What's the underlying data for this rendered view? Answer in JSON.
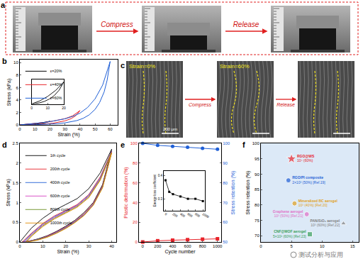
{
  "panel_a": {
    "title": "a",
    "steps": [
      "Compress",
      "Release"
    ]
  },
  "panel_c": {
    "title": "c",
    "image_labels": [
      "Strain=0%",
      "Strain=60%"
    ],
    "steps": [
      "Compress",
      "Release"
    ],
    "scale_bar": "200 μm"
  },
  "watermark": "测试分析与应用",
  "chart_data": [
    {
      "type": "line",
      "title": "b",
      "x_label": "Strain (%)",
      "y_label": "Stress (kPa)",
      "xlim": [
        0,
        65
      ],
      "xticks": [
        0,
        10,
        20,
        30,
        40,
        50,
        60
      ],
      "ylim": [
        0,
        10.5
      ],
      "yticks": [
        0,
        2,
        4,
        6,
        8,
        10
      ],
      "legend": "top left",
      "series": [
        {
          "name": "ε=20%",
          "color": "#000000",
          "x": [
            0,
            5,
            10,
            15,
            20,
            17,
            14,
            11,
            8,
            5,
            2,
            0.5
          ],
          "values": [
            0,
            0.08,
            0.2,
            0.36,
            0.58,
            0.36,
            0.22,
            0.13,
            0.07,
            0.03,
            0.01,
            0
          ]
        },
        {
          "name": "ε=40%",
          "color": "#e8232a",
          "x": [
            0,
            5,
            10,
            15,
            20,
            25,
            30,
            35,
            40,
            37,
            34,
            30,
            26,
            22,
            18,
            14,
            10,
            6,
            2,
            0.5
          ],
          "values": [
            0,
            0.1,
            0.22,
            0.36,
            0.52,
            0.72,
            1.0,
            1.45,
            2.3,
            1.45,
            1.0,
            0.65,
            0.42,
            0.27,
            0.17,
            0.1,
            0.05,
            0.02,
            0.01,
            0
          ]
        },
        {
          "name": "ε=60%",
          "color": "#1f5fd6",
          "x": [
            0,
            5,
            10,
            15,
            20,
            25,
            30,
            35,
            40,
            45,
            50,
            55,
            60,
            58,
            56,
            53,
            50,
            46,
            42,
            38,
            34,
            30,
            25,
            20,
            15,
            10,
            5,
            1
          ],
          "values": [
            0,
            0.1,
            0.22,
            0.36,
            0.52,
            0.72,
            0.98,
            1.35,
            1.9,
            2.8,
            4.2,
            6.4,
            10.2,
            7.2,
            5.3,
            3.6,
            2.5,
            1.6,
            1.05,
            0.7,
            0.48,
            0.33,
            0.2,
            0.12,
            0.06,
            0.03,
            0.01,
            0
          ]
        }
      ],
      "inset": {
        "xlim": [
          0,
          20
        ],
        "xticks": [
          0,
          10,
          20
        ],
        "ylim": [
          0,
          0.65
        ],
        "yticks": [],
        "tick_labels": "x"
      }
    },
    {
      "type": "line",
      "title": "d",
      "x_label": "Strain (%)",
      "y_label": "Stress (kPa)",
      "xlim": [
        0,
        42
      ],
      "xticks": [
        0,
        10,
        20,
        30,
        40
      ],
      "ylim": [
        0,
        2.5
      ],
      "yticks": [
        0,
        0.5,
        1.0,
        1.5,
        2.0,
        2.5
      ],
      "legend": "top left",
      "series": [
        {
          "name": "1th cycle",
          "color": "#000000",
          "x": [
            0,
            5,
            10,
            15,
            20,
            25,
            30,
            35,
            40,
            36,
            32,
            28,
            24,
            20,
            16,
            12,
            8,
            4,
            1
          ],
          "values": [
            0,
            0.35,
            0.6,
            0.8,
            0.95,
            1.1,
            1.35,
            1.75,
            2.35,
            1.45,
            1.0,
            0.75,
            0.55,
            0.4,
            0.27,
            0.16,
            0.08,
            0.02,
            0
          ]
        },
        {
          "name": "200th cycle",
          "color": "#e8232a",
          "x": [
            1,
            5,
            10,
            15,
            20,
            25,
            30,
            35,
            40,
            36,
            32,
            28,
            24,
            20,
            16,
            12,
            8,
            4,
            1.5
          ],
          "values": [
            0,
            0.22,
            0.47,
            0.66,
            0.8,
            0.95,
            1.2,
            1.65,
            2.3,
            1.42,
            0.98,
            0.72,
            0.53,
            0.38,
            0.26,
            0.15,
            0.07,
            0.02,
            0
          ]
        },
        {
          "name": "400th cycle",
          "color": "#1f5fd6",
          "x": [
            1.5,
            5,
            10,
            15,
            20,
            25,
            30,
            35,
            40,
            36,
            32,
            28,
            24,
            20,
            16,
            12,
            8,
            4,
            2
          ],
          "values": [
            0,
            0.2,
            0.45,
            0.64,
            0.78,
            0.93,
            1.18,
            1.62,
            2.29,
            1.4,
            0.96,
            0.7,
            0.52,
            0.37,
            0.25,
            0.14,
            0.07,
            0.02,
            0
          ]
        },
        {
          "name": "600th cycle",
          "color": "#d63fc2",
          "x": [
            2,
            5,
            10,
            15,
            20,
            25,
            30,
            35,
            40,
            36,
            32,
            28,
            24,
            20,
            16,
            12,
            8,
            4,
            2.5
          ],
          "values": [
            0,
            0.18,
            0.43,
            0.62,
            0.77,
            0.92,
            1.16,
            1.6,
            2.28,
            1.39,
            0.95,
            0.69,
            0.51,
            0.36,
            0.24,
            0.14,
            0.06,
            0.02,
            0
          ]
        },
        {
          "name": "800th cycle",
          "color": "#6b8e23",
          "x": [
            2.5,
            5,
            10,
            15,
            20,
            25,
            30,
            35,
            40,
            36,
            32,
            28,
            24,
            20,
            16,
            12,
            8,
            4,
            3
          ],
          "values": [
            0,
            0.16,
            0.41,
            0.6,
            0.75,
            0.9,
            1.14,
            1.58,
            2.27,
            1.38,
            0.94,
            0.68,
            0.5,
            0.35,
            0.23,
            0.13,
            0.06,
            0.01,
            0
          ]
        },
        {
          "name": "1000th cycle",
          "color": "#e08a00",
          "x": [
            3,
            5,
            10,
            15,
            20,
            25,
            30,
            35,
            40,
            36,
            32,
            28,
            24,
            20,
            16,
            12,
            8,
            4.5,
            3.5
          ],
          "values": [
            0,
            0.14,
            0.39,
            0.58,
            0.73,
            0.88,
            1.12,
            1.56,
            2.26,
            1.37,
            0.93,
            0.67,
            0.49,
            0.34,
            0.22,
            0.12,
            0.05,
            0.01,
            0
          ]
        }
      ]
    },
    {
      "type": "line",
      "title": "e",
      "x_label": "Cycle number",
      "y_label": "Plastic deformation (%)",
      "y2_label": "Stress retention (%)",
      "xlim": [
        -50,
        1050
      ],
      "xticks": [
        0,
        200,
        400,
        600,
        800,
        1000
      ],
      "ylim": [
        0,
        100
      ],
      "yticks": [
        0,
        20,
        40,
        60,
        80,
        100
      ],
      "y2lim": [
        50,
        100
      ],
      "y2ticks": [
        50,
        60,
        70,
        80,
        90,
        100
      ],
      "x": [
        0,
        200,
        400,
        600,
        800,
        1000
      ],
      "series": [
        {
          "color": "#e8232a",
          "marker": "square",
          "values": [
            0,
            1.2,
            1.8,
            2.3,
            2.8,
            3.2
          ]
        },
        {
          "color": "#1f5fd6",
          "marker": "circle",
          "axis": "y2",
          "values": [
            100,
            99,
            98.5,
            98,
            97.5,
            97
          ]
        }
      ],
      "inset": {
        "y_label": "Energy loss coefficient",
        "color": "#000000",
        "marker": "square",
        "x": [
          0,
          100,
          200,
          400,
          600,
          800,
          1000
        ],
        "values": [
          0.38,
          0.33,
          0.32,
          0.31,
          0.3,
          0.3,
          0.29
        ],
        "xlim": [
          -50,
          1050
        ],
        "xticks": [
          0,
          200,
          400,
          600,
          800,
          1000
        ],
        "ylim": [
          0.25,
          0.42
        ],
        "yticks": [
          0.3,
          0.4
        ]
      }
    },
    {
      "type": "scatter",
      "title": "f",
      "y_label": "Stress retention (%)",
      "xlim": [
        0,
        16
      ],
      "xticks": [
        0,
        5,
        10,
        15
      ],
      "ylim": [
        68,
        100
      ],
      "yticks": [
        70,
        75,
        80,
        85,
        90,
        95,
        100
      ],
      "points": [
        {
          "name": "RGO@WS",
          "detail": "10⁴ (60%)",
          "x": 5,
          "y": 95,
          "color": "#e8232a",
          "marker": "star"
        },
        {
          "name": "RGO/PI composite",
          "detail": "2×10³ (50%) [Ref.19]",
          "x": 4.5,
          "y": 88,
          "color": "#1f5fd6",
          "marker": "circle"
        },
        {
          "name": "Mineralized BC aerogel",
          "detail": "10³ (40%) [Ref.20]",
          "x": 5.5,
          "y": 80.5,
          "color": "#e0a020",
          "marker": "circle"
        },
        {
          "name": "Graphene aerogel",
          "detail": "10³ (50%) [Ref.21]",
          "x": 7.5,
          "y": 77,
          "color": "#e070c8",
          "marker": "circle"
        },
        {
          "name": "PAN/SiO₂ aerogel",
          "detail": "10³ (60%) [Ref.22]",
          "x": 13.5,
          "y": 74,
          "color": "#808080",
          "marker": "triangle"
        },
        {
          "name": "CNF@MOF aerogel",
          "detail": "5×10² (60%) [Ref.23]",
          "x": 8,
          "y": 70.5,
          "color": "#3aa05a",
          "marker": "square"
        }
      ]
    }
  ]
}
